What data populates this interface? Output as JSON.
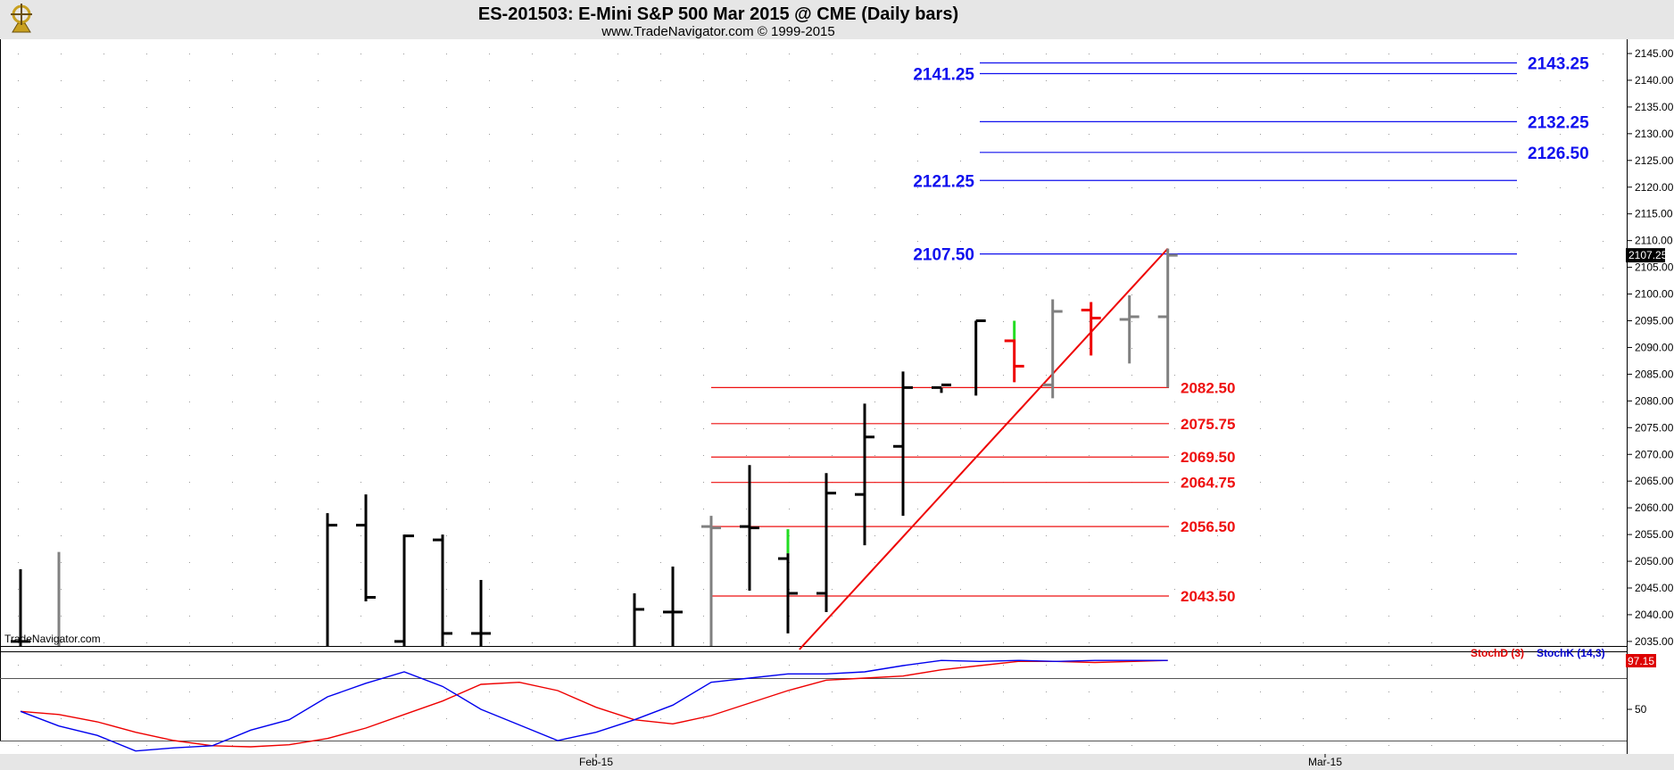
{
  "header": {
    "title": "ES-201503:  E-Mini S&P 500 Mar 2015 @ CME  (Daily bars)",
    "subtitle": "www.TradeNavigator.com © 1999-2015"
  },
  "watermark": "TradeNavigator.com",
  "colors": {
    "background": "#ffffff",
    "title_band": "#e6e6e6",
    "bar_up": "#000000",
    "bar_gray": "#808080",
    "bar_red": "#ee0000",
    "bar_green": "#22dd22",
    "blue_level": "#1010ee",
    "red_level": "#ee1010",
    "trendline": "#ee0000",
    "stoch_d": "#ee0000",
    "stoch_k": "#0000ee"
  },
  "chart_data": [
    {
      "type": "ohlc",
      "ylim": [
        2033,
        2147
      ],
      "xlim": [
        -0.5,
        42
      ],
      "y_ticks": [
        "2035.00",
        "2040.00",
        "2045.00",
        "2050.00",
        "2055.00",
        "2060.00",
        "2065.00",
        "2070.00",
        "2075.00",
        "2080.00",
        "2085.00",
        "2090.00",
        "2095.00",
        "2100.00",
        "2105.00",
        "2110.00",
        "2115.00",
        "2120.00",
        "2125.00",
        "2130.00",
        "2135.00",
        "2140.00",
        "2145.00"
      ],
      "x_ticks": [
        {
          "label": "Feb-15",
          "x": 15
        },
        {
          "label": "Mar-15",
          "x": 34
        }
      ],
      "last_price": "2107.25",
      "bars": [
        {
          "x": 0,
          "o": 2035,
          "h": 2048.5,
          "l": 2033,
          "c": 2035,
          "color": "bar_up"
        },
        {
          "x": 1,
          "o": 2033,
          "h": 2051.75,
          "l": 2033,
          "c": 2033,
          "color": "bar_gray"
        },
        {
          "x": 8,
          "o": 2033,
          "h": 2059,
          "l": 2033,
          "c": 2056.75,
          "color": "bar_up"
        },
        {
          "x": 9,
          "o": 2056.75,
          "h": 2062.5,
          "l": 2042.5,
          "c": 2043.25,
          "color": "bar_up"
        },
        {
          "x": 10,
          "o": 2035,
          "h": 2055,
          "l": 2033,
          "c": 2054.75,
          "color": "bar_up"
        },
        {
          "x": 11,
          "o": 2054,
          "h": 2055,
          "l": 2033,
          "c": 2036.5,
          "color": "bar_up"
        },
        {
          "x": 12,
          "o": 2036.5,
          "h": 2046.5,
          "l": 2033,
          "c": 2036.5,
          "color": "bar_up"
        },
        {
          "x": 16,
          "o": 2033,
          "h": 2044,
          "l": 2033,
          "c": 2041,
          "color": "bar_up"
        },
        {
          "x": 17,
          "o": 2040.5,
          "h": 2049,
          "l": 2033,
          "c": 2040.5,
          "color": "bar_up"
        },
        {
          "x": 18,
          "o": 2056.5,
          "h": 2058.5,
          "l": 2033,
          "c": 2056.25,
          "color": "bar_gray"
        },
        {
          "x": 19,
          "o": 2056.5,
          "h": 2068,
          "l": 2044.5,
          "c": 2056.25,
          "color": "bar_up"
        },
        {
          "x": 20,
          "o": 2050.5,
          "h": 2056,
          "l": 2036.5,
          "c": 2044,
          "color": "bar_up",
          "top_color": "bar_green",
          "top_from": 2051.5
        },
        {
          "x": 21,
          "o": 2044,
          "h": 2066.5,
          "l": 2040.5,
          "c": 2062.75,
          "color": "bar_up"
        },
        {
          "x": 22,
          "o": 2062.5,
          "h": 2079.5,
          "l": 2053,
          "c": 2073.25,
          "color": "bar_up"
        },
        {
          "x": 23,
          "o": 2071.5,
          "h": 2085.5,
          "l": 2058.5,
          "c": 2082.5,
          "color": "bar_up"
        },
        {
          "x": 24,
          "o": 2082.5,
          "h": 2082.5,
          "l": 2081.5,
          "c": 2083,
          "color": "bar_up"
        },
        {
          "x": 24.9,
          "o": 2082,
          "h": 2095,
          "l": 2081,
          "c": 2095,
          "color": "bar_up",
          "close_only": true
        },
        {
          "x": 25.9,
          "o": 2091.25,
          "h": 2095,
          "l": 2083.5,
          "c": 2086.5,
          "color": "bar_red",
          "top_color": "bar_green",
          "top_from": 2091.5
        },
        {
          "x": 26.9,
          "o": 2083,
          "h": 2099,
          "l": 2080.5,
          "c": 2096.75,
          "color": "bar_gray"
        },
        {
          "x": 27.9,
          "o": 2097,
          "h": 2098.5,
          "l": 2088.5,
          "c": 2095.5,
          "color": "bar_red"
        },
        {
          "x": 28.9,
          "o": 2095.25,
          "h": 2099.75,
          "l": 2087,
          "c": 2095.75,
          "color": "bar_gray"
        },
        {
          "x": 29.9,
          "o": 2095.75,
          "h": 2108.5,
          "l": 2082.5,
          "c": 2107.25,
          "color": "bar_gray"
        }
      ],
      "blue_levels": [
        {
          "value": 2143.25,
          "label": "2143.25",
          "side": "right"
        },
        {
          "value": 2141.25,
          "label": "2141.25",
          "side": "left"
        },
        {
          "value": 2132.25,
          "label": "2132.25",
          "side": "right"
        },
        {
          "value": 2126.5,
          "label": "2126.50",
          "side": "right"
        },
        {
          "value": 2121.25,
          "label": "2121.25",
          "side": "left"
        },
        {
          "value": 2107.5,
          "label": "2107.50",
          "side": "left"
        }
      ],
      "red_levels": [
        {
          "value": 2082.5,
          "label": "2082.50"
        },
        {
          "value": 2075.75,
          "label": "2075.75"
        },
        {
          "value": 2069.5,
          "label": "2069.50"
        },
        {
          "value": 2064.75,
          "label": "2064.75"
        },
        {
          "value": 2056.5,
          "label": "2056.50"
        },
        {
          "value": 2043.5,
          "label": "2043.50"
        }
      ],
      "trendline": {
        "x1": 20.3,
        "y1": 2033.5,
        "x2": 29.9,
        "y2": 2108.5
      }
    },
    {
      "type": "line",
      "ylim": [
        0,
        100
      ],
      "y_ticks": [
        {
          "value": 50,
          "label": "50"
        }
      ],
      "legend": [
        "StochD (3)",
        "StochK (14,3)"
      ],
      "last_value": "97.15",
      "series": [
        {
          "name": "StochD (3)",
          "color": "stoch_d",
          "x": [
            0,
            1,
            2,
            3,
            4,
            5,
            6,
            7,
            8,
            9,
            10,
            11,
            12,
            13,
            14,
            15,
            16,
            17,
            18,
            19,
            20,
            21,
            22,
            23,
            24,
            25,
            26,
            27,
            28,
            29,
            29.9
          ],
          "values": [
            48,
            45,
            38,
            28,
            20,
            15,
            14,
            16,
            22,
            32,
            45,
            58,
            74,
            76,
            68,
            52,
            40,
            36,
            44,
            56,
            68,
            78,
            80,
            82,
            88,
            92,
            96,
            96,
            95,
            96,
            97
          ]
        },
        {
          "name": "StochK (14,3)",
          "color": "stoch_k",
          "x": [
            0,
            1,
            2,
            3,
            4,
            5,
            6,
            7,
            8,
            9,
            10,
            11,
            12,
            13,
            14,
            15,
            16,
            17,
            18,
            19,
            20,
            21,
            22,
            23,
            24,
            25,
            26,
            27,
            28,
            29,
            29.9
          ],
          "values": [
            48,
            34,
            25,
            10,
            13,
            15,
            30,
            40,
            62,
            75,
            86,
            72,
            50,
            35,
            20,
            28,
            40,
            54,
            76,
            80,
            84,
            84,
            86,
            92,
            97,
            96,
            97,
            96,
            97,
            97,
            97
          ]
        }
      ]
    }
  ]
}
